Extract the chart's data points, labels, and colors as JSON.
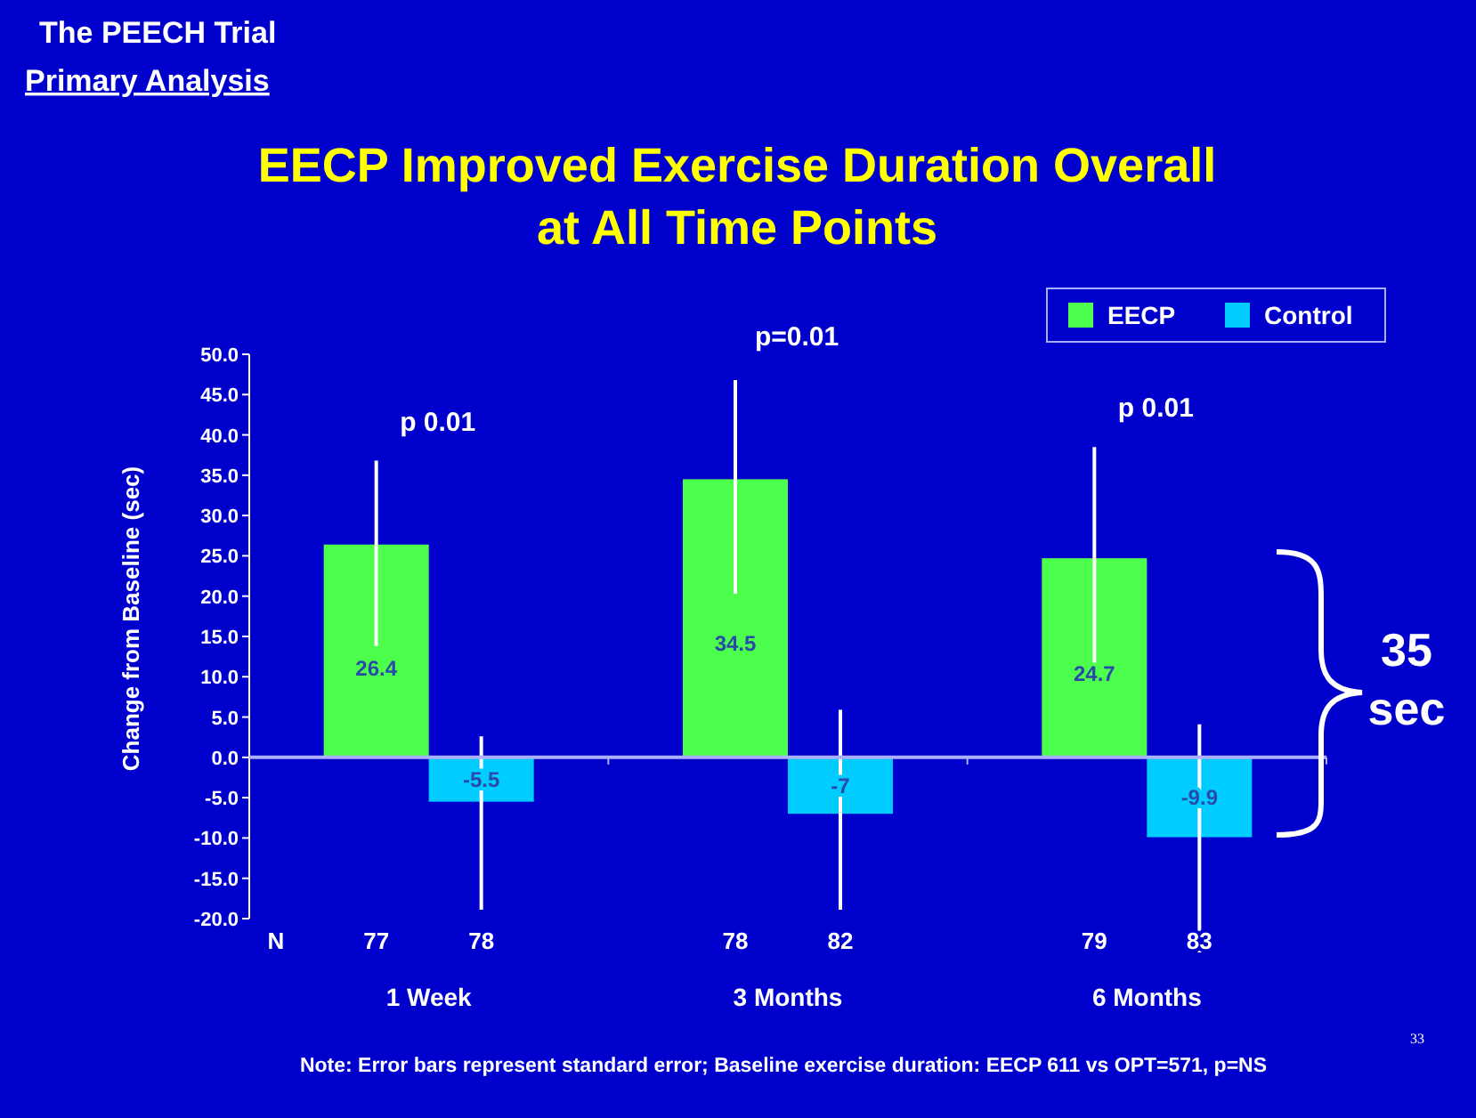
{
  "chart_data": {
    "type": "bar",
    "title": "EECP Improved Exercise Duration Overall at All Time Points",
    "ylabel": "Change from Baseline (sec)",
    "categories": [
      "1 Week",
      "3 Months",
      "6 Months"
    ],
    "series": [
      {
        "name": "EECP",
        "color": "#4cff4c",
        "values": [
          26.4,
          34.5,
          24.7
        ],
        "errors": [
          [
            13.8,
            36.8
          ],
          [
            20.3,
            46.8
          ],
          [
            10.8,
            38.5
          ]
        ]
      },
      {
        "name": "Control",
        "color": "#00ccff",
        "values": [
          -5.5,
          -7,
          -9.9
        ],
        "errors": [
          [
            -18.9,
            2.6
          ],
          [
            -18.9,
            5.9
          ],
          [
            -24.2,
            4.1
          ]
        ]
      }
    ],
    "ylim": [
      -20,
      50
    ],
    "yticks": [
      {
        "value": -20,
        "label": "-20.0"
      },
      {
        "value": -15,
        "label": "-15.0"
      },
      {
        "value": -10,
        "label": "-10.0"
      },
      {
        "value": -5,
        "label": "-5.0"
      },
      {
        "value": 0,
        "label": "0.0"
      },
      {
        "value": 5,
        "label": "5.0"
      },
      {
        "value": 10,
        "label": "10.0"
      },
      {
        "value": 15,
        "label": "15.0"
      },
      {
        "value": 20,
        "label": "20.0"
      },
      {
        "value": 25,
        "label": "25.0"
      },
      {
        "value": 30,
        "label": "30.0"
      },
      {
        "value": 35,
        "label": "35.0"
      },
      {
        "value": 40,
        "label": "40.0"
      },
      {
        "value": 45,
        "label": "45.0"
      },
      {
        "value": 50,
        "label": "50.0"
      }
    ],
    "data_labels": true,
    "legend": "top right",
    "ref_lines": [
      {
        "axis": "y",
        "value": 0,
        "color": "#aab0ff"
      }
    ],
    "annotations": [
      "The PEECH Trial",
      "Primary Analysis",
      "p  0.01",
      "p=0.01",
      "p  0.01",
      "N",
      "77",
      "78",
      "78",
      "82",
      "79",
      "83",
      "35 sec",
      "Note: Error bars represent standard error; Baseline exercise duration: EECP  611 vs OPT=571, p=NS",
      "33"
    ]
  }
}
